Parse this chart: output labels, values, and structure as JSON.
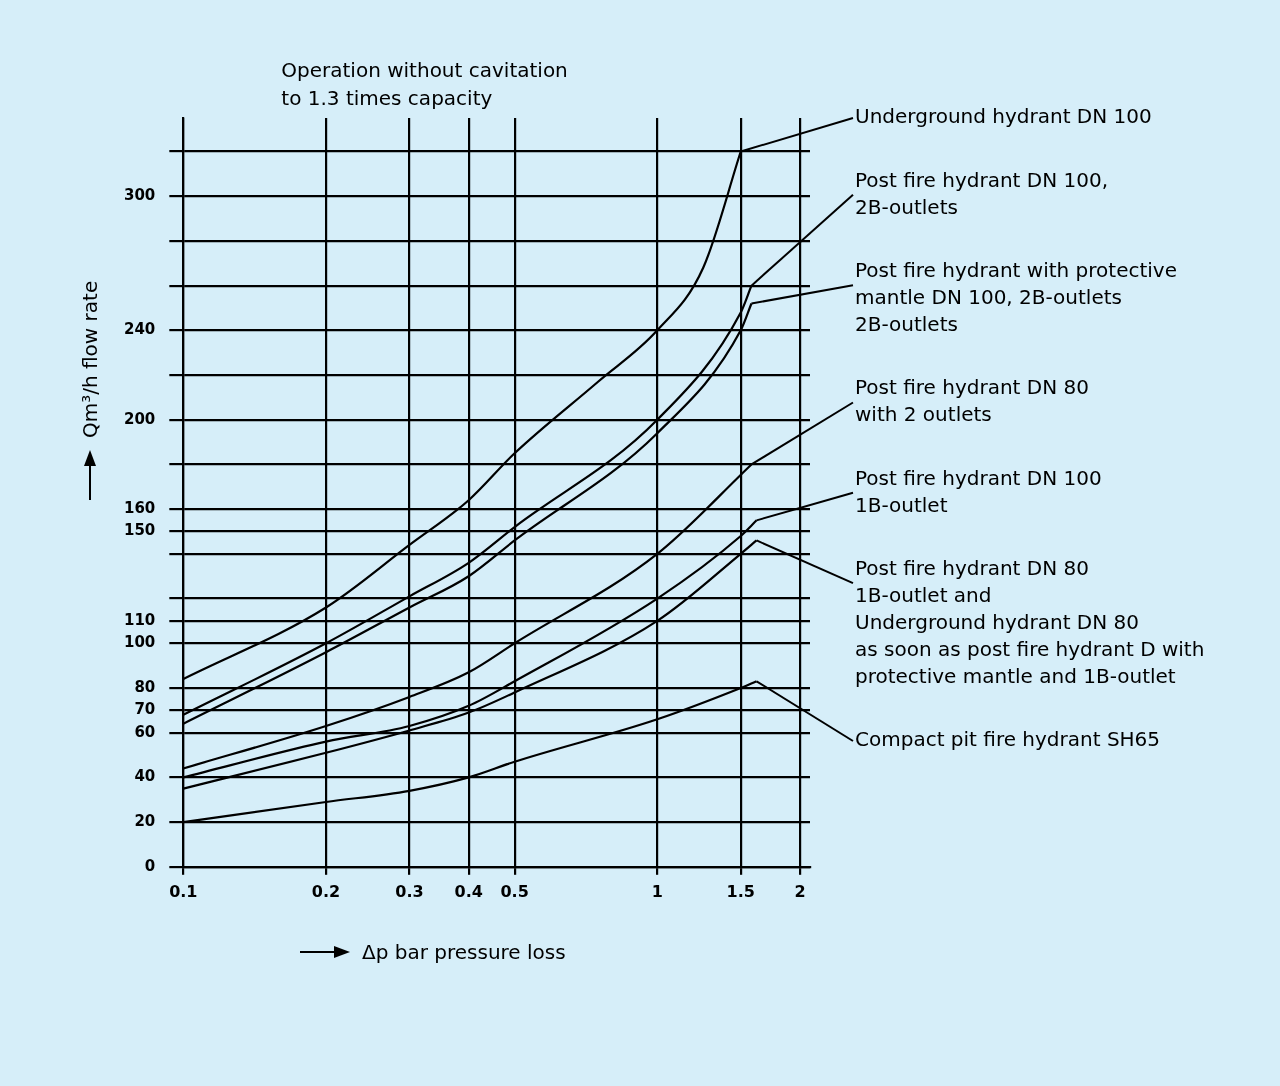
{
  "chart_data": {
    "type": "line",
    "xlabel": "Δp bar pressure loss",
    "ylabel": "Qm³/h flow rate",
    "annotations": [
      "Operation without cavitation\nto 1.3 times capacity"
    ],
    "log": "x",
    "grid": true,
    "legend": "right",
    "marker": "none",
    "line_style": "solid",
    "xlim": [
      0.1,
      2.1
    ],
    "xticks": [
      0.1,
      0.2,
      0.3,
      0.4,
      0.5,
      1,
      1.5,
      2
    ],
    "ylim": [
      0,
      335
    ],
    "yticks": [
      0,
      20,
      40,
      60,
      70,
      80,
      100,
      110,
      {
        "value": 120,
        "label": null
      },
      {
        "value": 140,
        "label": null
      },
      150,
      160,
      {
        "value": 180,
        "label": null
      },
      200,
      {
        "value": 220,
        "label": null
      },
      240,
      {
        "value": 260,
        "label": null
      },
      {
        "value": 280,
        "label": null
      },
      300,
      {
        "value": 320,
        "label": null
      }
    ],
    "series": [
      {
        "name": "Underground hydrant DN 100",
        "color": "#000000",
        "x": [
          0.1,
          0.2,
          0.3,
          0.4,
          0.5,
          0.75,
          1,
          1.25,
          1.5
        ],
        "values": [
          84,
          116,
          144,
          164,
          185,
          217,
          240,
          268,
          320
        ]
      },
      {
        "name": "Post fire hydrant DN 100,\n2B-outlets",
        "color": "#000000",
        "x": [
          0.1,
          0.2,
          0.3,
          0.4,
          0.5,
          1,
          1.5,
          1.58
        ],
        "values": [
          68,
          100,
          121,
          136,
          152,
          200,
          248,
          260
        ]
      },
      {
        "name": "Post fire hydrant with protective\nmantle DN 100, 2B-outlets\n2B-outlets",
        "color": "#000000",
        "x": [
          0.1,
          0.2,
          0.3,
          0.4,
          0.5,
          1,
          1.5,
          1.58
        ],
        "values": [
          64,
          96,
          116,
          130,
          146,
          194,
          240,
          252
        ]
      },
      {
        "name": "Post fire hydrant DN 80\nwith 2 outlets",
        "color": "#000000",
        "x": [
          0.1,
          0.2,
          0.3,
          0.4,
          0.5,
          1,
          1.58
        ],
        "values": [
          44,
          63,
          76,
          87,
          100,
          140,
          180
        ]
      },
      {
        "name": "Post fire hydrant DN 100\n1B-outlet",
        "color": "#000000",
        "x": [
          0.1,
          0.2,
          0.3,
          0.4,
          0.5,
          1,
          1.5,
          1.62
        ],
        "values": [
          40,
          56,
          63,
          72,
          83,
          120,
          148,
          155
        ]
      },
      {
        "name": "Post fire hydrant DN 80\n1B-outlet and\nUnderground hydrant DN 80\nas soon as post fire hydrant D with\nprotective mantle and 1B-outlet",
        "color": "#000000",
        "x": [
          0.1,
          0.2,
          0.3,
          0.4,
          0.5,
          1,
          1.5,
          1.62
        ],
        "values": [
          35,
          51,
          61,
          69,
          78,
          110,
          140,
          146
        ]
      },
      {
        "name": "Compact pit fire hydrant SH65",
        "color": "#000000",
        "x": [
          0.1,
          0.2,
          0.3,
          0.4,
          0.5,
          1,
          1.5,
          1.62
        ],
        "values": [
          20,
          29,
          34,
          40,
          47,
          66,
          80,
          83
        ]
      }
    ]
  }
}
